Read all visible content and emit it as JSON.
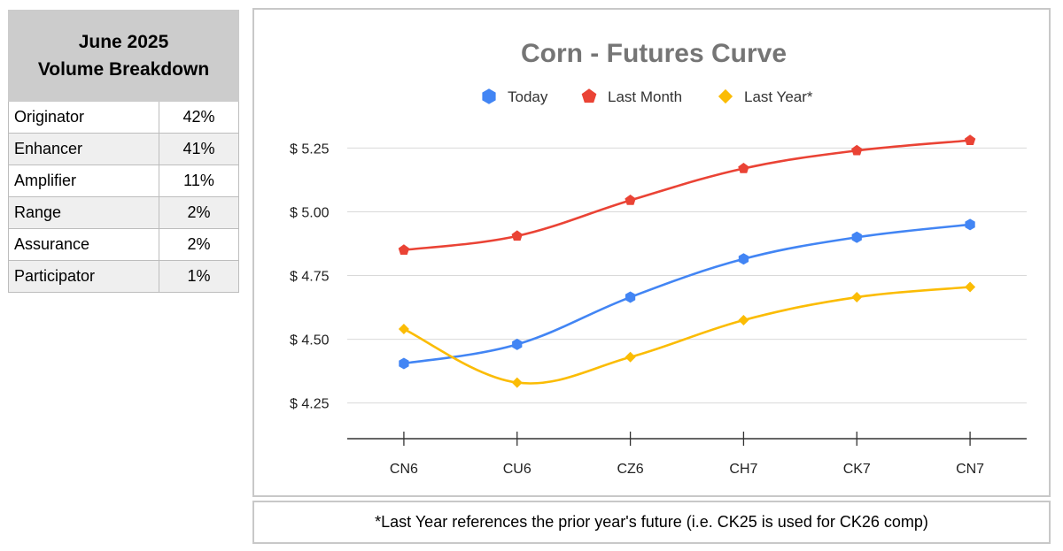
{
  "volume_table": {
    "title_line1": "June 2025",
    "title_line2": "Volume Breakdown",
    "rows": [
      {
        "label": "Originator",
        "value": "42%"
      },
      {
        "label": "Enhancer",
        "value": "41%"
      },
      {
        "label": "Amplifier",
        "value": "11%"
      },
      {
        "label": "Range",
        "value": "2%"
      },
      {
        "label": "Assurance",
        "value": "2%"
      },
      {
        "label": "Participator",
        "value": "1%"
      }
    ]
  },
  "chart_data": {
    "type": "line",
    "title": "Corn - Futures Curve",
    "categories": [
      "CN6",
      "CU6",
      "CZ6",
      "CH7",
      "CK7",
      "CN7"
    ],
    "y_ticks": [
      4.25,
      4.5,
      4.75,
      5.0,
      5.25
    ],
    "y_tick_labels": [
      "$ 4.25",
      "$ 4.50",
      "$ 4.75",
      "$ 5.00",
      "$ 5.25"
    ],
    "ylim": [
      4.11,
      5.3
    ],
    "grid": true,
    "legend_position": "top",
    "series": [
      {
        "name": "Today",
        "color": "#4285f4",
        "marker": "hexagon",
        "values": [
          4.405,
          4.48,
          4.665,
          4.815,
          4.9,
          4.95
        ]
      },
      {
        "name": "Last Month",
        "color": "#ea4335",
        "marker": "pentagon",
        "values": [
          4.85,
          4.905,
          5.045,
          5.17,
          5.24,
          5.28
        ]
      },
      {
        "name": "Last Year*",
        "color": "#fbbc04",
        "marker": "diamond",
        "values": [
          4.54,
          4.33,
          4.43,
          4.575,
          4.665,
          4.705
        ]
      }
    ]
  },
  "footnote": "*Last Year references the prior year's future (i.e. CK25 is used for CK26 comp)"
}
